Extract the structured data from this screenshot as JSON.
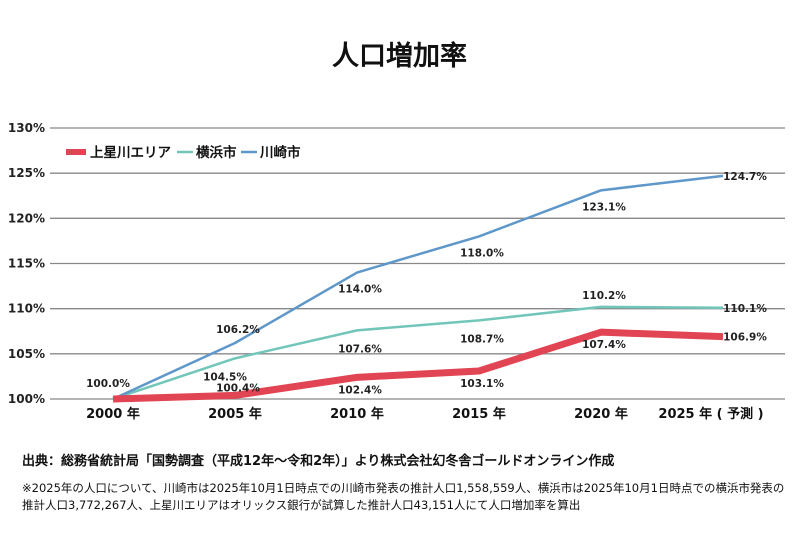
{
  "chart_data": {
    "type": "line",
    "title": "人口増加率",
    "categories": [
      "2000 年",
      "2005 年",
      "2010 年",
      "2015 年",
      "2020 年",
      "2025 年 ( 予測 )"
    ],
    "ylim": [
      100,
      130
    ],
    "yticks": [
      "100%",
      "105%",
      "110%",
      "115%",
      "120%",
      "125%",
      "130%"
    ],
    "ytick_values": [
      100,
      105,
      110,
      115,
      120,
      125,
      130
    ],
    "grid": true,
    "legend_position": "top-left",
    "series": [
      {
        "name": "上星川エリア",
        "color": "#e14452",
        "values": [
          100.0,
          100.4,
          102.4,
          103.1,
          107.4,
          106.9
        ],
        "labels": [
          "100.0%",
          "100.4%",
          "102.4%",
          "103.1%",
          "107.4%",
          "106.9%"
        ]
      },
      {
        "name": "横浜市",
        "color": "#72c6b9",
        "values": [
          100.0,
          104.5,
          107.6,
          108.7,
          110.2,
          110.1
        ],
        "labels": [
          "",
          "104.5%",
          "107.6%",
          "108.7%",
          "110.2%",
          "110.1%"
        ]
      },
      {
        "name": "川崎市",
        "color": "#5e97c9",
        "values": [
          100.0,
          106.2,
          114.0,
          118.0,
          123.1,
          124.7
        ],
        "labels": [
          "",
          "106.2%",
          "114.0%",
          "118.0%",
          "123.1%",
          "124.7%"
        ]
      }
    ]
  },
  "footer": {
    "source": "出典：総務省統計局「国勢調査（平成12年〜令和2年）」より株式会社幻冬舎ゴールドオンライン作成",
    "note": "※2025年の人口について、川崎市は2025年10月1日時点での川崎市発表の推計人口1,558,559人、横浜市は2025年10月1日時点での横浜市発表の推計人口3,772,267人、上星川エリアはオリックス銀行が試算した推計人口43,151人にて人口増加率を算出"
  }
}
